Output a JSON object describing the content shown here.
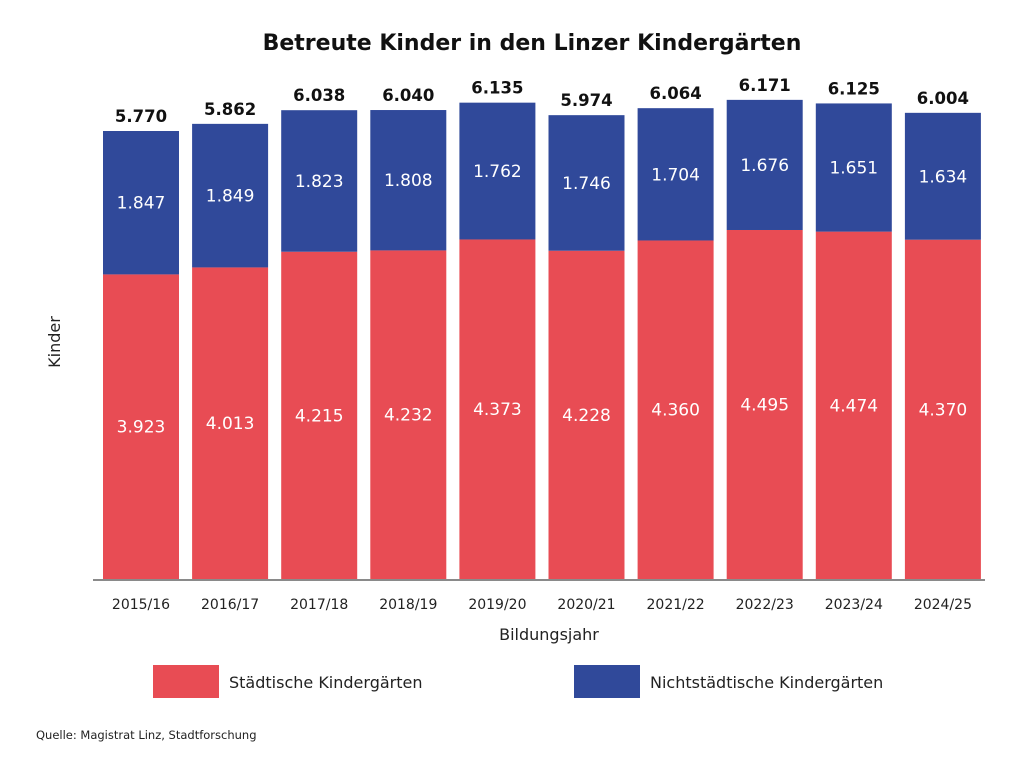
{
  "chart_data": {
    "type": "bar",
    "stacked": true,
    "title": "Betreute Kinder in den Linzer Kindergärten",
    "xlabel": "Bildungsjahr",
    "ylabel": "Kinder",
    "ylim": [
      0,
      6171
    ],
    "grid": false,
    "legend_position": "bottom",
    "categories": [
      "2015/16",
      "2016/17",
      "2017/18",
      "2018/19",
      "2019/20",
      "2020/21",
      "2021/22",
      "2022/23",
      "2023/24",
      "2024/25"
    ],
    "series": [
      {
        "name": "Städtische Kindergärten",
        "color": "#E84C54",
        "values": [
          3923,
          4013,
          4215,
          4232,
          4373,
          4228,
          4360,
          4495,
          4474,
          4370
        ],
        "labels": [
          "3.923",
          "4.013",
          "4.215",
          "4.232",
          "4.373",
          "4.228",
          "4.360",
          "4.495",
          "4.474",
          "4.370"
        ]
      },
      {
        "name": "Nichtstädtische Kindergärten",
        "color": "#30499A",
        "values": [
          1847,
          1849,
          1823,
          1808,
          1762,
          1746,
          1704,
          1676,
          1651,
          1634
        ],
        "labels": [
          "1.847",
          "1.849",
          "1.823",
          "1.808",
          "1.762",
          "1.746",
          "1.704",
          "1.676",
          "1.651",
          "1.634"
        ]
      }
    ],
    "totals": [
      5770,
      5862,
      6038,
      6040,
      6135,
      5974,
      6064,
      6171,
      6125,
      6004
    ],
    "total_labels": [
      "5.770",
      "5.862",
      "6.038",
      "6.040",
      "6.135",
      "5.974",
      "6.064",
      "6.171",
      "6.125",
      "6.004"
    ],
    "source": "Quelle: Magistrat Linz, Stadtforschung"
  }
}
